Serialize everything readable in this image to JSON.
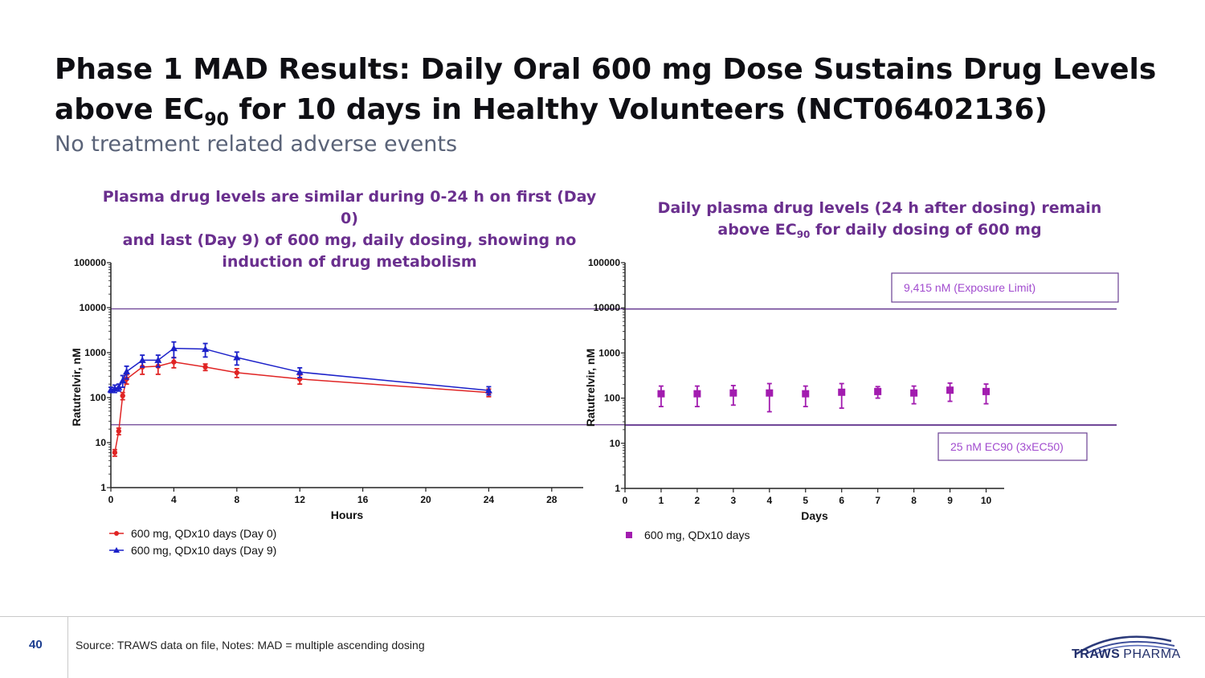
{
  "slide": {
    "title_line1": "Phase 1 MAD Results: Daily Oral 600 mg Dose Sustains Drug Levels",
    "title_line2_pre": "above EC",
    "title_line2_sub": "90",
    "title_line2_post": " for 10 days in Healthy Volunteers (NCT06402136)",
    "subtitle": "No treatment related adverse events",
    "page_number": "40",
    "source": "Source: TRAWS data on file, Notes: MAD = multiple ascending dosing",
    "logo_bold": "TRAWS",
    "logo_light": "PHARMA"
  },
  "colors": {
    "heading": "#6a2f8e",
    "day0": "#e02424",
    "day9": "#1c21c9",
    "daily": "#a21caf",
    "ref_line": "#6a3f93",
    "annotation": "#a24ccf"
  },
  "chart_data": [
    {
      "type": "line",
      "heading_line1": "Plasma drug levels are similar during 0-24 h on first (Day 0)",
      "heading_line2": "and last (Day 9) of 600 mg, daily dosing, showing no",
      "heading_line3": "induction of drug metabolism",
      "xlabel": "Hours",
      "ylabel": "Ratutrelvir, nM",
      "xlim": [
        0,
        30
      ],
      "ylim": [
        1,
        100000
      ],
      "yscale": "log",
      "x_ticks": [
        "0",
        "4",
        "8",
        "12",
        "16",
        "20",
        "24",
        "28"
      ],
      "y_ticks": [
        "1",
        "10",
        "100",
        "1000",
        "10000",
        "100000"
      ],
      "reference_lines": [
        9415,
        25
      ],
      "series": [
        {
          "name": "600 mg, QDx10 days (Day 0)",
          "marker": "circle",
          "x": [
            0.25,
            0.5,
            0.75,
            1,
            2,
            3,
            4,
            6,
            8,
            12,
            24
          ],
          "y": [
            6,
            18,
            110,
            260,
            480,
            500,
            620,
            480,
            360,
            260,
            130
          ],
          "err": [
            1,
            3,
            20,
            60,
            150,
            170,
            160,
            80,
            80,
            60,
            25
          ]
        },
        {
          "name": "600 mg, QDx10 days (Day 9)",
          "marker": "triangle",
          "x": [
            0,
            0.25,
            0.5,
            0.75,
            1,
            2,
            3,
            4,
            6,
            8,
            12,
            24
          ],
          "y": [
            150,
            160,
            170,
            240,
            380,
            680,
            680,
            1250,
            1200,
            780,
            370,
            145
          ],
          "err": [
            20,
            30,
            30,
            70,
            120,
            200,
            200,
            480,
            400,
            250,
            90,
            30
          ]
        }
      ]
    },
    {
      "type": "scatter",
      "heading_line1": "Daily plasma drug levels (24 h after dosing) remain",
      "heading_line2_pre": "above EC",
      "heading_line2_sub": "90",
      "heading_line2_post": " for daily dosing of 600 mg",
      "xlabel": "Days",
      "ylabel": "Ratutrelvir, nM",
      "xlim": [
        0,
        10.5
      ],
      "ylim": [
        1,
        100000
      ],
      "yscale": "log",
      "x_ticks": [
        "0",
        "1",
        "2",
        "3",
        "4",
        "5",
        "6",
        "7",
        "8",
        "9",
        "10"
      ],
      "y_ticks": [
        "1",
        "10",
        "100",
        "1000",
        "10000",
        "100000"
      ],
      "reference_lines": [
        9415,
        25
      ],
      "annotations": [
        "9,415 nM (Exposure Limit)",
        "25 nM EC90 (3xEC50)"
      ],
      "series": [
        {
          "name": "600 mg, QDx10 days",
          "marker": "square",
          "x": [
            1,
            2,
            3,
            4,
            5,
            6,
            7,
            8,
            9,
            10
          ],
          "y": [
            125,
            125,
            130,
            130,
            125,
            135,
            140,
            130,
            150,
            140
          ],
          "err": [
            60,
            60,
            60,
            80,
            60,
            75,
            40,
            55,
            65,
            65
          ]
        }
      ]
    }
  ]
}
